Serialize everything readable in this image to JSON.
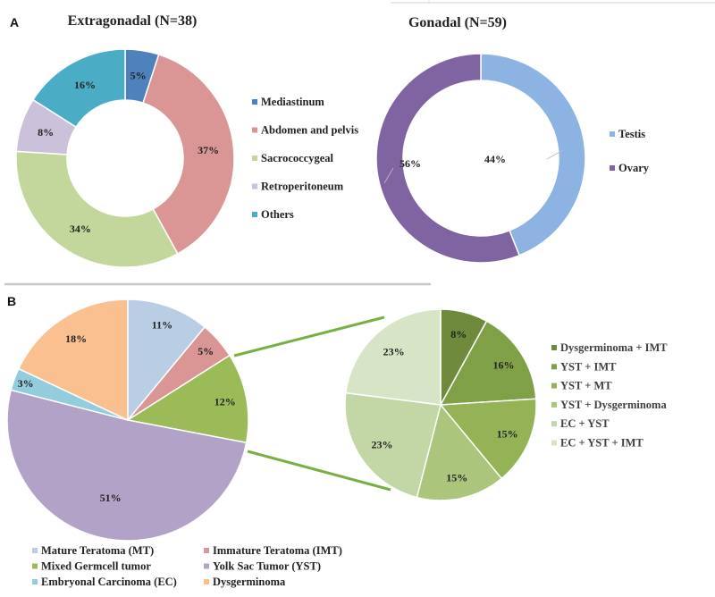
{
  "chart_data": [
    {
      "panel": "A",
      "type": "pie",
      "variant": "donut",
      "title": "Extragonadal (N=38)",
      "categories": [
        "Mediastinum",
        "Abdomen and pelvis",
        "Sacrococcygeal",
        "Retroperitoneum",
        "Others"
      ],
      "values": [
        5,
        37,
        34,
        8,
        16
      ],
      "labels": [
        "5%",
        "37%",
        "34%",
        "8%",
        "16%"
      ],
      "colors": [
        "#4f81bd",
        "#d99694",
        "#c3d69b",
        "#ccc1da",
        "#4bacc6"
      ],
      "legend": "right"
    },
    {
      "panel": "A",
      "type": "pie",
      "variant": "ring",
      "title": "Gonadal (N=59)",
      "categories": [
        "Testis",
        "Ovary"
      ],
      "values": [
        44,
        56
      ],
      "labels": [
        "44%",
        "56%"
      ],
      "colors": [
        "#8db3e2",
        "#8064a2"
      ],
      "legend": "right"
    },
    {
      "panel": "B",
      "type": "pie",
      "title": "",
      "categories": [
        "Mature Teratoma (MT)",
        "Immature Teratoma (IMT)",
        "Mixed Germcell tumor",
        "Yolk Sac Tumor (YST)",
        "Embryonal Carcinoma (EC)",
        "Dysgerminoma"
      ],
      "values": [
        11,
        5,
        12,
        51,
        3,
        18
      ],
      "labels": [
        "11%",
        "5%",
        "12%",
        "51%",
        "3%",
        "18%"
      ],
      "colors": [
        "#b9cde5",
        "#d99694",
        "#9bbb59",
        "#b3a2c7",
        "#93cddd",
        "#fac090"
      ],
      "legend": "bottom"
    },
    {
      "panel": "B",
      "type": "pie",
      "title": "",
      "breakdown_of": "Mixed Germcell tumor",
      "categories": [
        "Dysgerminoma + IMT",
        "YST + IMT",
        "YST + MT",
        "YST + Dysgerminoma",
        "EC + YST",
        "EC + YST + IMT"
      ],
      "values": [
        8,
        16,
        15,
        15,
        23,
        23
      ],
      "labels": [
        "8%",
        "16%",
        "15%",
        "15%",
        "23%",
        "23%"
      ],
      "colors": [
        "#6e8b3d",
        "#7fa046",
        "#93b356",
        "#abc57c",
        "#c3d6a5",
        "#d8e4c6"
      ],
      "legend": "right"
    }
  ],
  "panel_labels": [
    "A",
    "B"
  ],
  "connector_color": "#77b041",
  "divider_color": "#c8c8c8"
}
